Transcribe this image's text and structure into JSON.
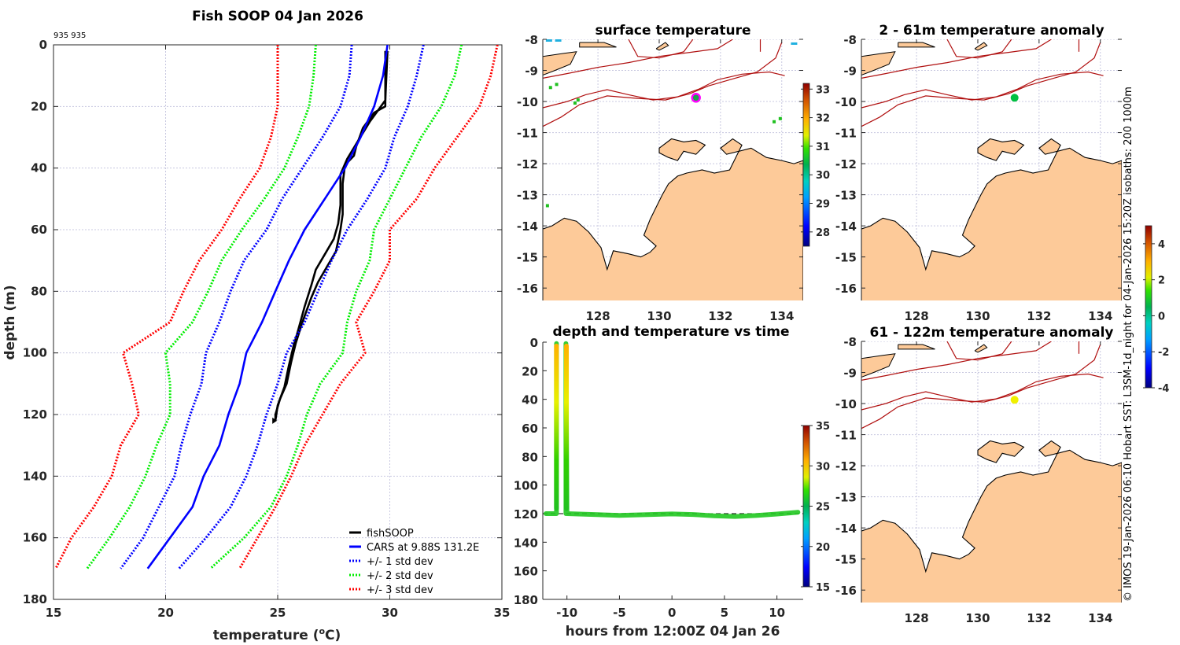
{
  "chart_data": [
    {
      "type": "line",
      "id": "profile",
      "title": "Fish SOOP 04 Jan 2026",
      "annotation": "935 935",
      "xlabel": "temperature (°C)",
      "xlabel_parts": {
        "pre": "temperature (",
        "sup": "o",
        "post": "C)"
      },
      "ylabel": "depth (m)",
      "xlim": [
        15,
        35
      ],
      "ylim": [
        0,
        180
      ],
      "y_reversed": true,
      "xticks": [
        15,
        20,
        25,
        30,
        35
      ],
      "yticks": [
        0,
        20,
        40,
        60,
        80,
        100,
        120,
        140,
        160,
        180
      ],
      "grid": true,
      "legend_position": "bottom-right",
      "series": [
        {
          "name": "fishSOOP",
          "color": "#000000",
          "style": "solid",
          "points": [
            [
              29.8,
              2
            ],
            [
              29.8,
              20
            ],
            [
              29.3,
              22
            ],
            [
              28.8,
              27
            ],
            [
              28.5,
              33
            ],
            [
              28.4,
              36
            ],
            [
              28.0,
              39
            ],
            [
              27.9,
              45
            ],
            [
              27.9,
              55
            ],
            [
              27.8,
              60
            ],
            [
              27.6,
              67
            ],
            [
              27.2,
              72
            ],
            [
              26.8,
              77
            ],
            [
              26.5,
              82
            ],
            [
              26.1,
              90
            ],
            [
              25.8,
              97
            ],
            [
              25.6,
              103
            ],
            [
              25.4,
              110
            ],
            [
              25.1,
              115
            ],
            [
              24.9,
              120
            ],
            [
              24.9,
              122
            ]
          ]
        },
        {
          "name": "fishSOOP (return)",
          "color": "#000000",
          "style": "solid",
          "legend": false,
          "points": [
            [
              24.9,
              122
            ],
            [
              25.0,
              117
            ],
            [
              25.3,
              111
            ],
            [
              25.5,
              104
            ],
            [
              25.7,
              98
            ],
            [
              25.9,
              93
            ],
            [
              26.2,
              85
            ],
            [
              26.5,
              78
            ],
            [
              26.7,
              73
            ],
            [
              27.1,
              68
            ],
            [
              27.5,
              63
            ],
            [
              27.7,
              58
            ],
            [
              27.8,
              52
            ],
            [
              27.8,
              42
            ],
            [
              28.1,
              37
            ],
            [
              28.6,
              31
            ],
            [
              29.1,
              25
            ],
            [
              29.5,
              21
            ],
            [
              29.8,
              18
            ],
            [
              29.9,
              2
            ]
          ]
        },
        {
          "name": "CARS at 9.88S 131.2E",
          "color": "#0000ff",
          "style": "solid",
          "points": [
            [
              29.9,
              0
            ],
            [
              29.7,
              10
            ],
            [
              29.3,
              20
            ],
            [
              28.7,
              30
            ],
            [
              28.0,
              40
            ],
            [
              27.1,
              50
            ],
            [
              26.2,
              60
            ],
            [
              25.5,
              70
            ],
            [
              24.9,
              80
            ],
            [
              24.3,
              90
            ],
            [
              23.6,
              100
            ],
            [
              23.3,
              110
            ],
            [
              22.8,
              120
            ],
            [
              22.4,
              130
            ],
            [
              21.7,
              140
            ],
            [
              21.2,
              150
            ],
            [
              20.2,
              160
            ],
            [
              19.2,
              170
            ]
          ]
        },
        {
          "name": "+/- 1 std dev",
          "color": "#0000ff",
          "style": "dotted",
          "points": [
            [
              28.3,
              0
            ],
            [
              28.2,
              10
            ],
            [
              27.8,
              20
            ],
            [
              27.0,
              30
            ],
            [
              26.1,
              40
            ],
            [
              25.2,
              50
            ],
            [
              24.5,
              60
            ],
            [
              23.5,
              70
            ],
            [
              22.9,
              80
            ],
            [
              22.4,
              90
            ],
            [
              21.8,
              100
            ],
            [
              21.6,
              110
            ],
            [
              21.1,
              120
            ],
            [
              20.7,
              130
            ],
            [
              20.4,
              140
            ],
            [
              19.7,
              150
            ],
            [
              19.0,
              160
            ],
            [
              18.0,
              170
            ]
          ]
        },
        {
          "name": "+/- 1 std dev (upper)",
          "color": "#0000ff",
          "style": "dotted",
          "legend": false,
          "points": [
            [
              31.5,
              0
            ],
            [
              31.2,
              10
            ],
            [
              30.8,
              20
            ],
            [
              30.2,
              30
            ],
            [
              29.8,
              40
            ],
            [
              29.0,
              50
            ],
            [
              28.1,
              60
            ],
            [
              27.4,
              70
            ],
            [
              26.8,
              80
            ],
            [
              26.2,
              90
            ],
            [
              25.4,
              100
            ],
            [
              25.0,
              110
            ],
            [
              24.5,
              120
            ],
            [
              24.1,
              130
            ],
            [
              23.6,
              140
            ],
            [
              22.9,
              150
            ],
            [
              21.8,
              160
            ],
            [
              20.6,
              170
            ]
          ]
        },
        {
          "name": "+/- 2 std dev",
          "color": "#00ee00",
          "style": "dotted",
          "points": [
            [
              26.7,
              0
            ],
            [
              26.6,
              10
            ],
            [
              26.4,
              20
            ],
            [
              25.9,
              30
            ],
            [
              25.3,
              40
            ],
            [
              24.4,
              50
            ],
            [
              23.4,
              60
            ],
            [
              22.5,
              70
            ],
            [
              21.9,
              80
            ],
            [
              21.2,
              90
            ],
            [
              20.0,
              100
            ],
            [
              20.2,
              110
            ],
            [
              20.2,
              120
            ],
            [
              19.6,
              130
            ],
            [
              19.1,
              140
            ],
            [
              18.4,
              150
            ],
            [
              17.5,
              160
            ],
            [
              16.5,
              170
            ]
          ]
        },
        {
          "name": "+/- 2 std dev (upper)",
          "color": "#00ee00",
          "style": "dotted",
          "legend": false,
          "points": [
            [
              33.2,
              0
            ],
            [
              32.9,
              10
            ],
            [
              32.3,
              20
            ],
            [
              31.4,
              30
            ],
            [
              30.7,
              40
            ],
            [
              30.0,
              50
            ],
            [
              29.3,
              60
            ],
            [
              29.1,
              70
            ],
            [
              28.5,
              80
            ],
            [
              28.1,
              90
            ],
            [
              27.9,
              100
            ],
            [
              26.9,
              110
            ],
            [
              26.3,
              120
            ],
            [
              25.9,
              130
            ],
            [
              25.4,
              140
            ],
            [
              24.7,
              150
            ],
            [
              23.5,
              160
            ],
            [
              22.0,
              170
            ]
          ]
        },
        {
          "name": "+/- 3 std dev",
          "color": "#ff0000",
          "style": "dotted",
          "points": [
            [
              25.0,
              0
            ],
            [
              25.0,
              10
            ],
            [
              25.0,
              20
            ],
            [
              24.7,
              30
            ],
            [
              24.2,
              40
            ],
            [
              23.3,
              50
            ],
            [
              22.5,
              60
            ],
            [
              21.5,
              70
            ],
            [
              20.8,
              80
            ],
            [
              20.2,
              90
            ],
            [
              18.1,
              100
            ],
            [
              18.5,
              110
            ],
            [
              18.8,
              120
            ],
            [
              18.0,
              130
            ],
            [
              17.6,
              140
            ],
            [
              16.8,
              150
            ],
            [
              15.8,
              160
            ],
            [
              15.1,
              170
            ]
          ]
        },
        {
          "name": "+/- 3 std dev (upper)",
          "color": "#ff0000",
          "style": "dotted",
          "legend": false,
          "points": [
            [
              34.8,
              0
            ],
            [
              34.5,
              10
            ],
            [
              34.0,
              20
            ],
            [
              33.0,
              30
            ],
            [
              32.0,
              40
            ],
            [
              31.2,
              50
            ],
            [
              30.0,
              60
            ],
            [
              30.0,
              70
            ],
            [
              29.3,
              80
            ],
            [
              28.5,
              90
            ],
            [
              28.9,
              100
            ],
            [
              27.8,
              110
            ],
            [
              27.0,
              120
            ],
            [
              26.2,
              130
            ],
            [
              25.6,
              140
            ],
            [
              24.9,
              150
            ],
            [
              24.1,
              160
            ],
            [
              23.3,
              170
            ]
          ]
        }
      ]
    },
    {
      "type": "heatmap",
      "id": "surface-temperature",
      "title": "surface temperature",
      "xticks": [
        128,
        130,
        132,
        134
      ],
      "yticks": [
        -8,
        -9,
        -10,
        -11,
        -12,
        -13,
        -14,
        -15,
        -16
      ],
      "xlim": [
        126.2,
        134.7
      ],
      "ylim": [
        -16.4,
        -8
      ],
      "colorbar": {
        "min": 27.5,
        "max": 33.2,
        "ticks": [
          28,
          29,
          30,
          31,
          32,
          33
        ]
      },
      "marker": {
        "lon": 131.2,
        "lat": -9.88,
        "fill": "#1e9f4d",
        "ring": "#ff00ff"
      }
    },
    {
      "type": "heatmap",
      "id": "anomaly-2-61",
      "title": "2 - 61m temperature anomaly",
      "xticks": [
        128,
        130,
        132,
        134
      ],
      "yticks": [
        -8,
        -9,
        -10,
        -11,
        -12,
        -13,
        -14,
        -15,
        -16
      ],
      "xlim": [
        126.2,
        134.7
      ],
      "ylim": [
        -16.4,
        -8
      ],
      "marker": {
        "lon": 131.2,
        "lat": -9.88,
        "fill": "#00c040"
      }
    },
    {
      "type": "scatter",
      "id": "depth-temp-time",
      "title": "depth and temperature vs time",
      "xlabel": "hours from 12:00Z 04 Jan 26",
      "xlim": [
        -12.3,
        12.5
      ],
      "ylim": [
        0,
        180
      ],
      "y_reversed": true,
      "xticks": [
        -10,
        -5,
        0,
        5,
        10
      ],
      "yticks": [
        0,
        20,
        40,
        60,
        80,
        100,
        120,
        140,
        160,
        180
      ],
      "reference_depth": 120,
      "colorbar": {
        "min": 15,
        "max": 35,
        "ticks": [
          15,
          20,
          25,
          30,
          35
        ]
      },
      "tracks": [
        {
          "points": [
            [
              -12.0,
              120
            ],
            [
              -11.0,
              120
            ],
            [
              -11.0,
              1
            ],
            [
              -11.0,
              120
            ]
          ]
        },
        {
          "points": [
            [
              -10.1,
              120
            ],
            [
              -10.1,
              1
            ],
            [
              -10.0,
              120
            ],
            [
              -8,
              120.5
            ],
            [
              -5,
              121.2
            ],
            [
              -2,
              120.6
            ],
            [
              0,
              120.2
            ],
            [
              2,
              120.6
            ],
            [
              4,
              121.5
            ],
            [
              6,
              122
            ],
            [
              8,
              121.3
            ],
            [
              10,
              120.3
            ],
            [
              12,
              119
            ]
          ]
        }
      ]
    },
    {
      "type": "heatmap",
      "id": "anomaly-61-122",
      "title": "61 - 122m temperature anomaly",
      "xticks": [
        128,
        130,
        132,
        134
      ],
      "yticks": [
        -8,
        -9,
        -10,
        -11,
        -12,
        -13,
        -14,
        -15,
        -16
      ],
      "xlim": [
        126.2,
        134.7
      ],
      "ylim": [
        -16.4,
        -8
      ],
      "colorbar": {
        "min": -4,
        "max": 5,
        "ticks": [
          -4,
          -2,
          0,
          2,
          4
        ]
      },
      "marker": {
        "lon": 131.2,
        "lat": -9.88,
        "fill": "#f0f000"
      }
    }
  ],
  "credit": "© IMOS 19-Jan-2026 06:10 Hobart SST: L3SM-1d_night for 04-Jan-2026 15:20Z isobaths: 200  1000m",
  "colors": {
    "land": "#fdca99",
    "isobath": "#b01010",
    "grid": "#c8c8e0"
  }
}
